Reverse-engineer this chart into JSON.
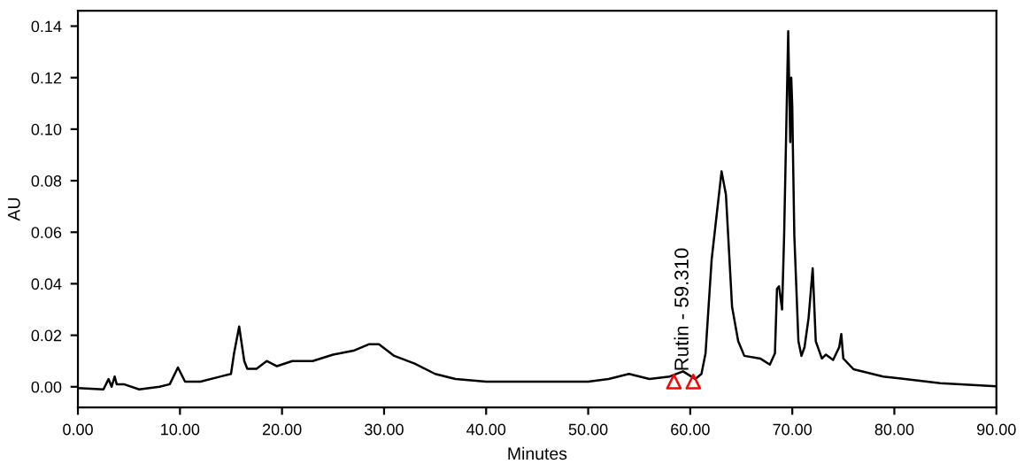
{
  "chart_data": {
    "type": "line",
    "xlabel": "Minutes",
    "ylabel": "AU",
    "xlim": [
      0,
      90
    ],
    "ylim": [
      -0.008,
      0.146
    ],
    "xticks": [
      {
        "value": 0,
        "label": "0.00"
      },
      {
        "value": 10,
        "label": "10.00"
      },
      {
        "value": 20,
        "label": "20.00"
      },
      {
        "value": 30,
        "label": "30.00"
      },
      {
        "value": 40,
        "label": "40.00"
      },
      {
        "value": 50,
        "label": "50.00"
      },
      {
        "value": 60,
        "label": "60.00"
      },
      {
        "value": 70,
        "label": "70.00"
      },
      {
        "value": 80,
        "label": "80.00"
      },
      {
        "value": 90,
        "label": "90.00"
      }
    ],
    "yticks": [
      {
        "value": 0,
        "label": "0.00"
      },
      {
        "value": 0.02,
        "label": "0.02"
      },
      {
        "value": 0.04,
        "label": "0.04"
      },
      {
        "value": 0.06,
        "label": "0.06"
      },
      {
        "value": 0.08,
        "label": "0.08"
      },
      {
        "value": 0.1,
        "label": "0.10"
      },
      {
        "value": 0.12,
        "label": "0.12"
      },
      {
        "value": 0.14,
        "label": "0.14"
      }
    ],
    "grid": false,
    "series": [
      {
        "color": "#000000",
        "x": [
          0,
          2.5,
          3.0,
          3.3,
          3.6,
          3.8,
          4.5,
          6,
          8,
          9,
          9.8,
          10.5,
          12,
          14,
          15,
          15.3,
          15.8,
          16.3,
          16.6,
          17.5,
          18.5,
          19.5,
          21,
          23,
          25,
          27,
          28.5,
          29.5,
          31,
          33,
          35,
          37,
          40,
          45,
          50,
          52,
          54,
          56,
          58,
          59.3,
          60.5,
          61.1,
          61.5,
          62.1,
          63.07,
          63.5,
          64.1,
          64.7,
          65.3,
          66.9,
          67.8,
          68.3,
          68.5,
          68.7,
          69.0,
          69.2,
          69.6,
          69.8,
          69.9,
          70.0,
          70.05,
          70.2,
          70.6,
          70.9,
          71.2,
          71.6,
          72.0,
          72.3,
          72.9,
          73.3,
          74.0,
          74.6,
          74.8,
          75.0,
          76.0,
          78.9,
          84.5,
          89.9
        ],
        "values": [
          -0.0005,
          -0.001,
          0.003,
          0.0,
          0.004,
          0.001,
          0.001,
          -0.001,
          0.0,
          0.001,
          0.0075,
          0.002,
          0.002,
          0.004,
          0.005,
          0.013,
          0.0234,
          0.01,
          0.007,
          0.007,
          0.01,
          0.008,
          0.01,
          0.01,
          0.0125,
          0.014,
          0.0165,
          0.0165,
          0.012,
          0.009,
          0.005,
          0.003,
          0.002,
          0.002,
          0.002,
          0.003,
          0.005,
          0.003,
          0.004,
          0.006,
          0.003,
          0.005,
          0.013,
          0.0495,
          0.0836,
          0.0745,
          0.031,
          0.0177,
          0.012,
          0.0109,
          0.0086,
          0.013,
          0.038,
          0.039,
          0.03,
          0.0587,
          0.138,
          0.095,
          0.12,
          0.1087,
          0.095,
          0.0587,
          0.0177,
          0.012,
          0.0154,
          0.0268,
          0.046,
          0.0177,
          0.011,
          0.0125,
          0.0104,
          0.0154,
          0.0205,
          0.011,
          0.0068,
          0.004,
          0.0014,
          0.0002
        ]
      },
      {
        "type": "scatter",
        "color": "#ff0000",
        "marker": "triangle",
        "x": [
          58.4,
          60.3
        ],
        "values": [
          0.002,
          0.002
        ]
      }
    ],
    "annotations": [
      {
        "text": "Rutin - 59.310",
        "x": 59.31,
        "y": 0.006
      }
    ]
  }
}
